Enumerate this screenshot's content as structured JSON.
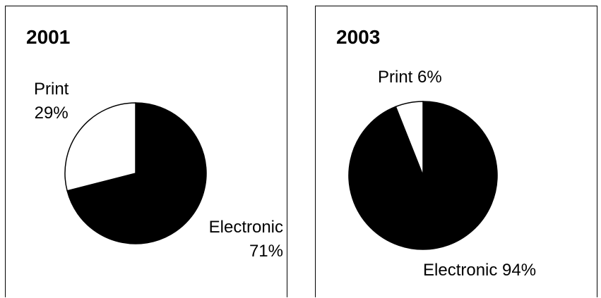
{
  "chart_data": [
    {
      "type": "pie",
      "title": "2001",
      "slices": [
        {
          "label": "Print",
          "value": 29,
          "value_label": "29%",
          "color": "#ffffff"
        },
        {
          "label": "Electronic",
          "value": 71,
          "value_label": "71%",
          "color": "#000000"
        }
      ]
    },
    {
      "type": "pie",
      "title": "2003",
      "slices": [
        {
          "label": "Print",
          "value": 6,
          "value_label": "6%",
          "color": "#ffffff"
        },
        {
          "label": "Electronic",
          "value": 94,
          "value_label": "94%",
          "color": "#000000"
        }
      ]
    }
  ]
}
